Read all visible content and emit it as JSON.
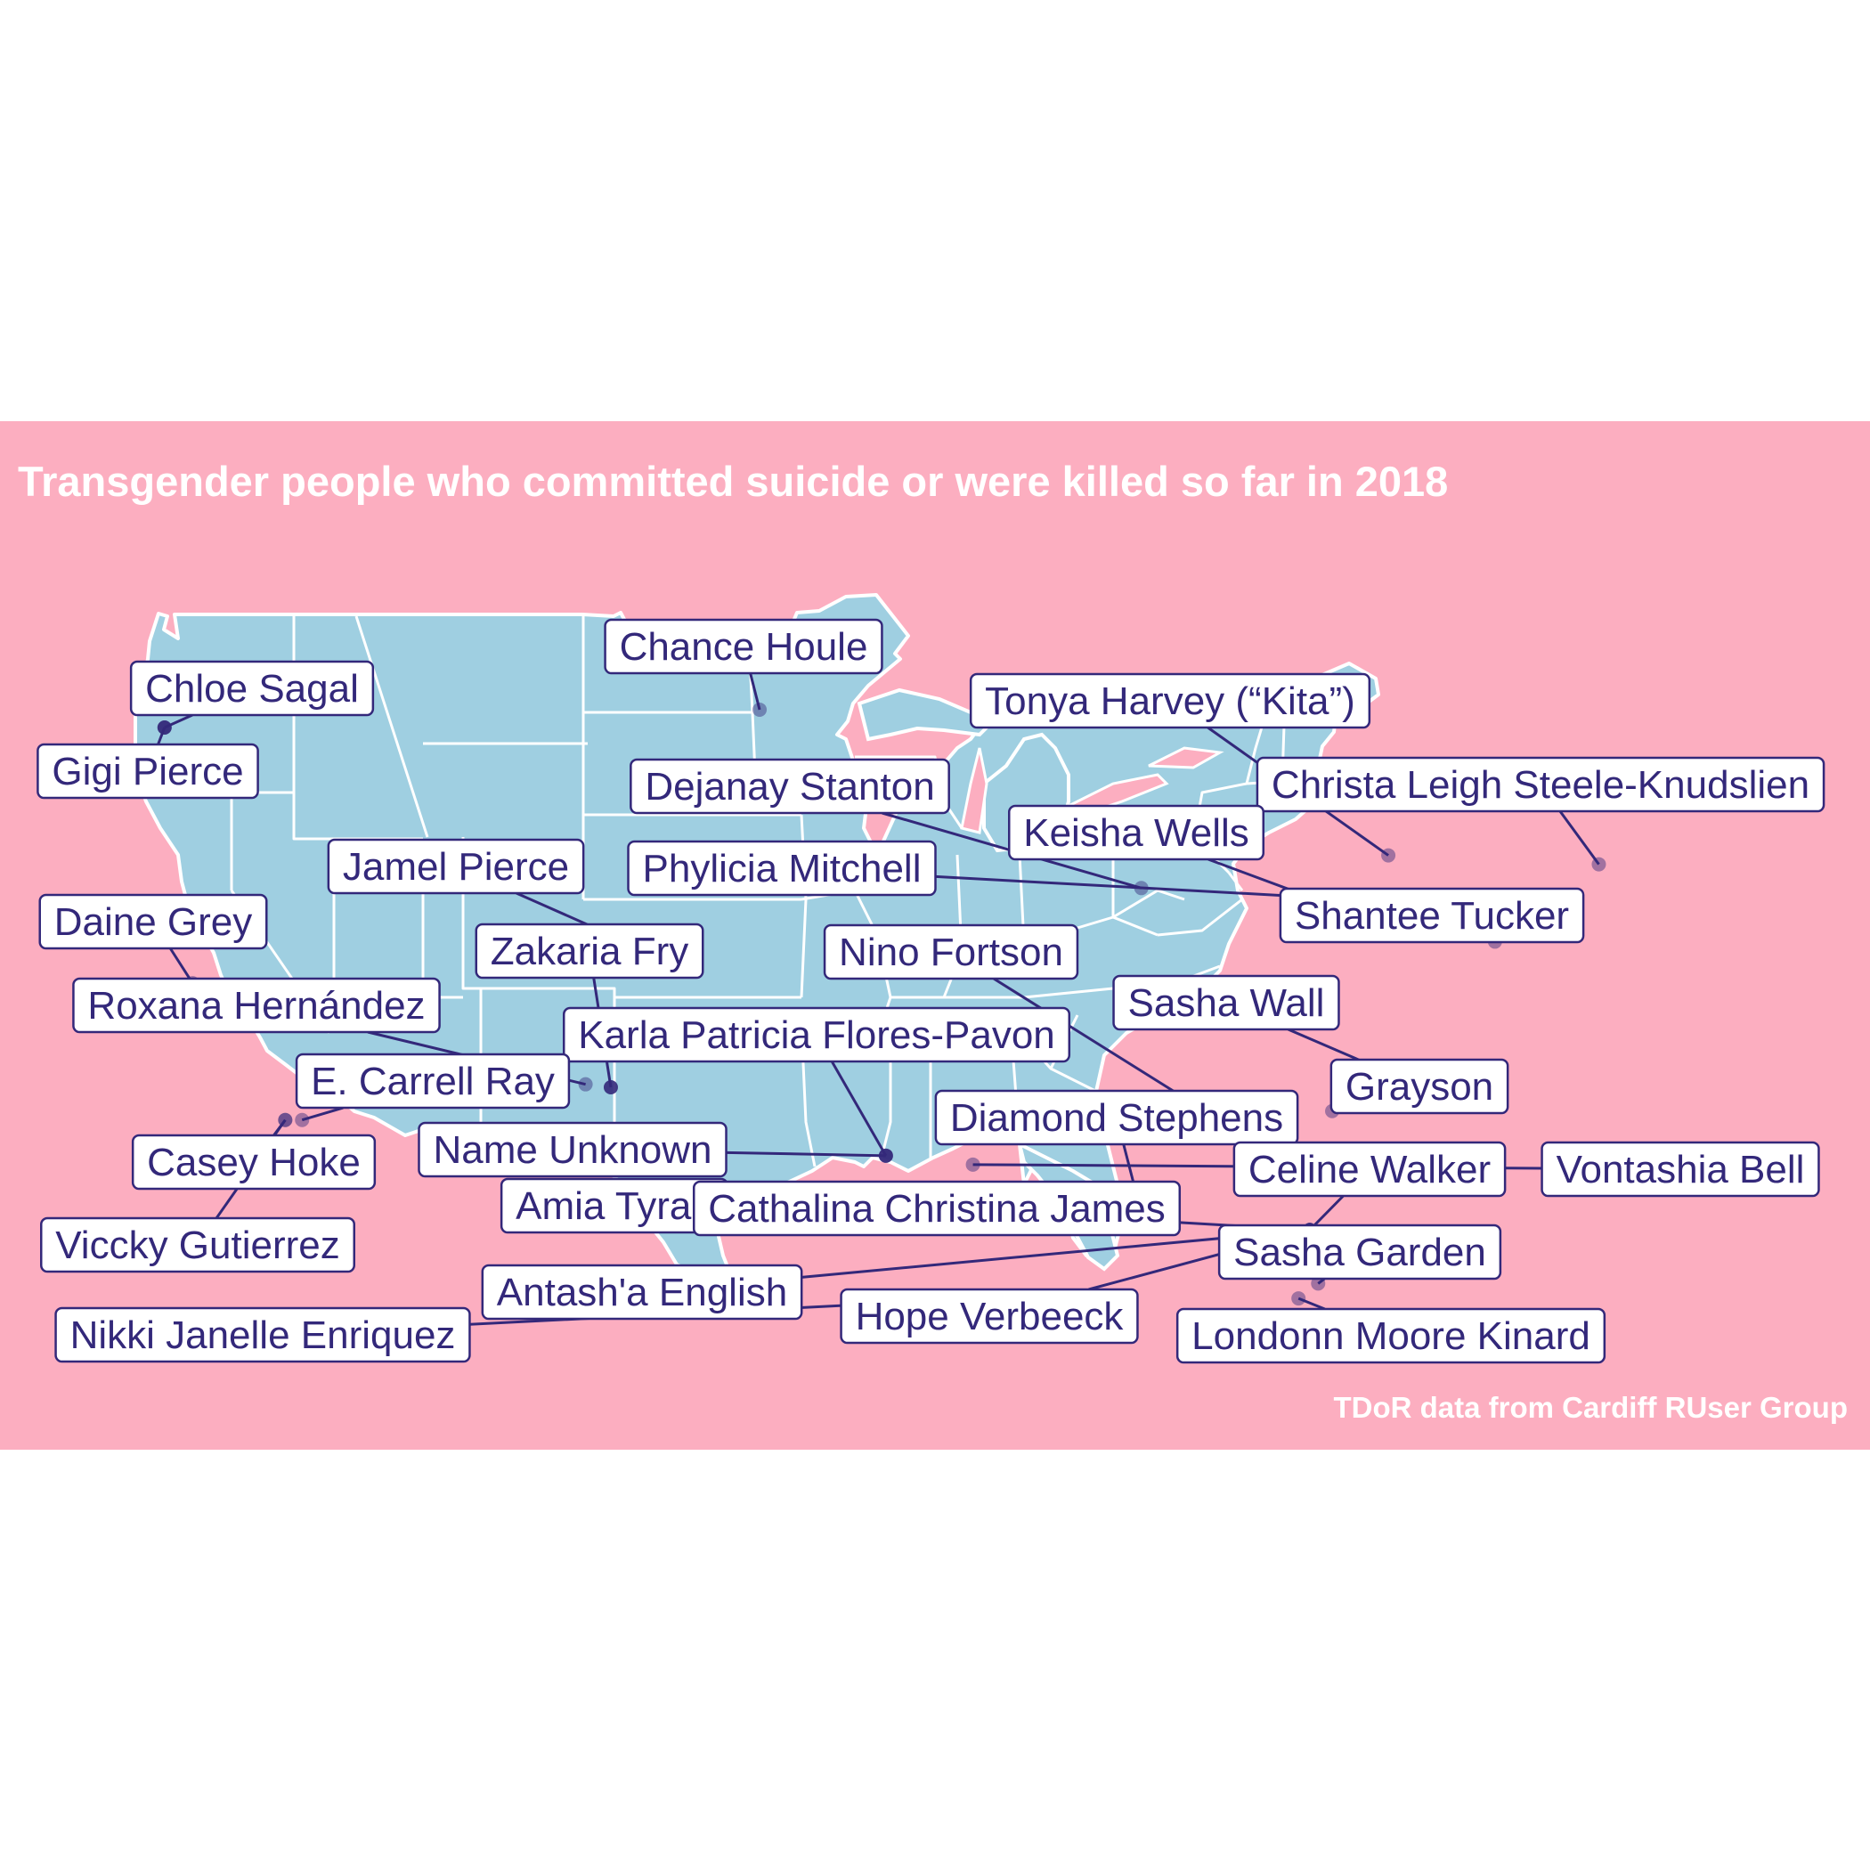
{
  "title": "Transgender people who committed suicide or were killed so far in 2018",
  "caption": "TDoR data from Cardiff RUser Group",
  "colors": {
    "panel": "#fcaec0",
    "land": "#9fcfe1",
    "border": "#ffffff",
    "ink": "#33287a",
    "label_fill": "#ffffff"
  },
  "map": {
    "type": "point-map",
    "region": "United States (contiguous)"
  },
  "labels": [
    {
      "name": "Chance Houle",
      "lon": -101.3,
      "lat": 47.8,
      "opaque": false
    },
    {
      "name": "Chloe Sagal",
      "lon": -122.5,
      "lat": 47.2,
      "opaque": true
    },
    {
      "name": "Gigi Pierce",
      "lon": -122.5,
      "lat": 47.2,
      "opaque": false
    },
    {
      "name": "Tonya Harvey (“Kita”)",
      "lon": -78.9,
      "lat": 42.9,
      "opaque": false
    },
    {
      "name": "Dejanay Stanton",
      "lon": -87.7,
      "lat": 41.8,
      "opaque": false
    },
    {
      "name": "Christa Leigh Steele-Knudslien",
      "lon": -71.4,
      "lat": 42.6,
      "opaque": false
    },
    {
      "name": "Keisha Wells",
      "lon": -81.7,
      "lat": 41.5,
      "opaque": true
    },
    {
      "name": "Phylicia Mitchell",
      "lon": -81.7,
      "lat": 41.5,
      "opaque": false
    },
    {
      "name": "Jamel Pierce",
      "lon": -106.3,
      "lat": 40.1,
      "opaque": false
    },
    {
      "name": "Shantee Tucker",
      "lon": -75.1,
      "lat": 40.0,
      "opaque": false
    },
    {
      "name": "Daine Grey",
      "lon": -121.5,
      "lat": 38.6,
      "opaque": false
    },
    {
      "name": "Zakaria Fry",
      "lon": -106.6,
      "lat": 35.1,
      "opaque": true
    },
    {
      "name": "Nino Fortson",
      "lon": -84.4,
      "lat": 33.7,
      "opaque": false
    },
    {
      "name": "Sasha Wall",
      "lon": -79.4,
      "lat": 35.8,
      "opaque": false
    },
    {
      "name": "Roxana Hernández",
      "lon": -107.5,
      "lat": 35.2,
      "opaque": false
    },
    {
      "name": "Karla Patricia Flores-Pavon",
      "lon": -96.8,
      "lat": 32.8,
      "opaque": true
    },
    {
      "name": "E. Carrell Ray",
      "lon": -117.6,
      "lat": 34.0,
      "opaque": false
    },
    {
      "name": "Grayson",
      "lon": -80.9,
      "lat": 34.3,
      "opaque": false
    },
    {
      "name": "Diamond Stephens",
      "lon": -87.9,
      "lat": 31.6,
      "opaque": false
    },
    {
      "name": "Name Unknown",
      "lon": -96.8,
      "lat": 32.8,
      "opaque": false
    },
    {
      "name": "Casey Hoke",
      "lon": -118.2,
      "lat": 34.0,
      "opaque": false
    },
    {
      "name": "Celine Walker",
      "lon": -81.7,
      "lat": 30.3,
      "opaque": true
    },
    {
      "name": "Vontashia Bell",
      "lon": -93.7,
      "lat": 32.5,
      "opaque": false
    },
    {
      "name": "Amia Tyrae",
      "lon": -91.1,
      "lat": 30.5,
      "opaque": false
    },
    {
      "name": "Cathalina Christina James",
      "lon": -81.7,
      "lat": 30.3,
      "opaque": false
    },
    {
      "name": "Sasha Garden",
      "lon": -81.4,
      "lat": 28.5,
      "opaque": false
    },
    {
      "name": "Viccky Gutierrez",
      "lon": -118.2,
      "lat": 34.0,
      "opaque": false
    },
    {
      "name": "Antash'a English",
      "lon": -81.7,
      "lat": 30.3,
      "opaque": false
    },
    {
      "name": "Nikki Janelle Enriquez",
      "lon": -97.5,
      "lat": 27.8,
      "opaque": false
    },
    {
      "name": "Hope Verbeeck",
      "lon": -81.7,
      "lat": 30.3,
      "opaque": false
    },
    {
      "name": "Londonn Moore Kinard",
      "lon": -82.1,
      "lat": 28.0,
      "opaque": false
    }
  ]
}
